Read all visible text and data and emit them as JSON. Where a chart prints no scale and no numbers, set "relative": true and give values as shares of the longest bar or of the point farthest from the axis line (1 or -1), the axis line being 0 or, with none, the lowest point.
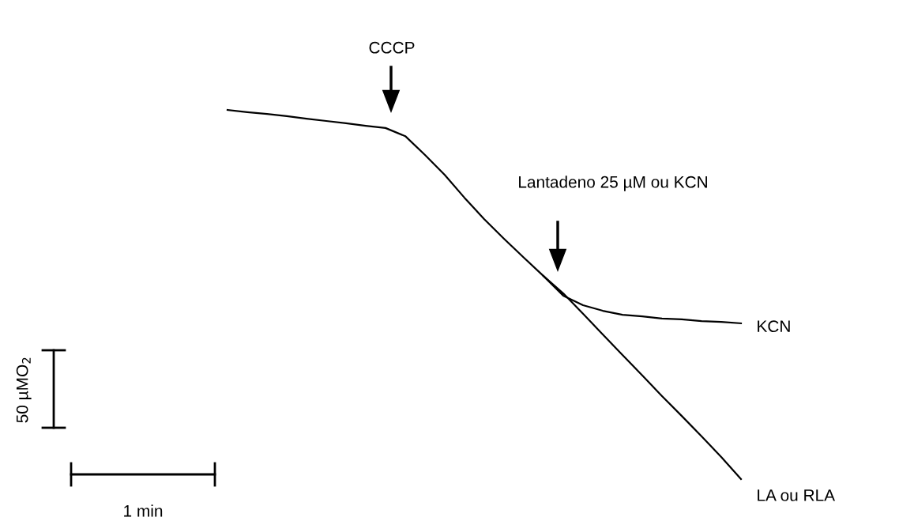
{
  "chart_data": {
    "type": "line",
    "relative": true,
    "legend": false,
    "marker": "none",
    "line_style": "solid",
    "categories": [
      null,
      null,
      null,
      null,
      null,
      null,
      null,
      null,
      null,
      null,
      null,
      null,
      null,
      null,
      null,
      null,
      null,
      null,
      null,
      null,
      null,
      null,
      null,
      null,
      null,
      null,
      null
    ],
    "series": [
      {
        "name": "KCN",
        "color": "#000000",
        "values": [
          1.0,
          0.994,
          0.989,
          0.983,
          0.976,
          0.97,
          0.964,
          0.957,
          0.951,
          0.929,
          0.878,
          0.824,
          0.762,
          0.704,
          0.651,
          0.6,
          0.55,
          0.497,
          0.471,
          0.456,
          0.445,
          0.441,
          0.435,
          0.433,
          0.428,
          0.426,
          0.422
        ]
      },
      {
        "name": "LA ou RLA",
        "color": "#000000",
        "values": [
          null,
          null,
          null,
          null,
          null,
          null,
          null,
          null,
          null,
          null,
          null,
          null,
          null,
          null,
          null,
          null,
          0.55,
          0.503,
          0.448,
          0.392,
          0.336,
          0.281,
          0.225,
          0.171,
          0.116,
          0.06,
          0.0
        ]
      }
    ],
    "annotations": [
      "CCCP",
      "Lantadeno 25 µM ou KCN",
      "50 µMO$_{2}$",
      "1 min"
    ]
  }
}
